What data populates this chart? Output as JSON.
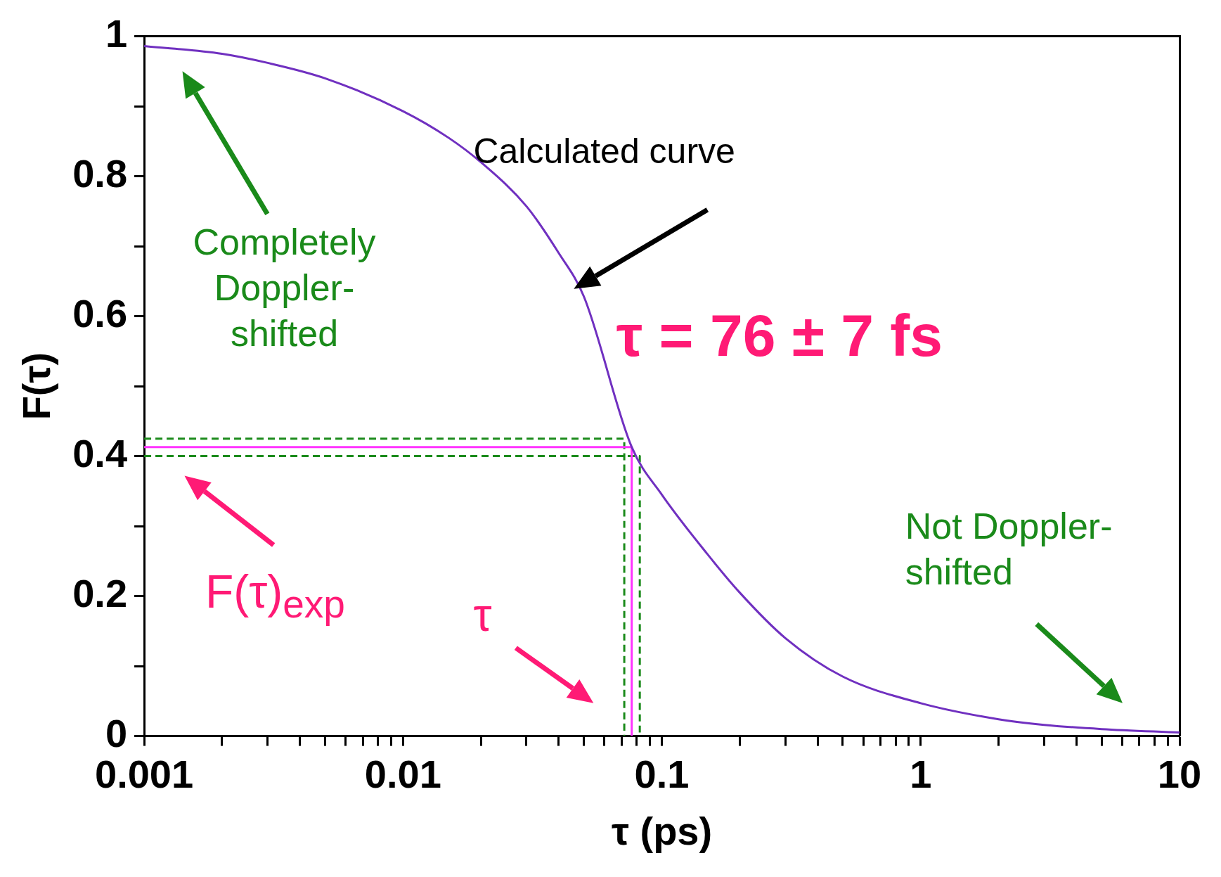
{
  "chart_data": {
    "type": "line",
    "xlabel": "τ (ps)",
    "ylabel": "F(τ)",
    "log": "x",
    "grid": false,
    "legend": false,
    "marker": "none",
    "xlim": [
      0.001,
      10
    ],
    "ylim": [
      0,
      1
    ],
    "xticks": [
      0.001,
      {
        "value": 0.002,
        "label": null
      },
      {
        "value": 0.003,
        "label": null
      },
      {
        "value": 0.004,
        "label": null
      },
      {
        "value": 0.005,
        "label": null
      },
      {
        "value": 0.006,
        "label": null
      },
      {
        "value": 0.007,
        "label": null
      },
      {
        "value": 0.008,
        "label": null
      },
      {
        "value": 0.009,
        "label": null
      },
      0.01,
      {
        "value": 0.02,
        "label": null
      },
      {
        "value": 0.03,
        "label": null
      },
      {
        "value": 0.04,
        "label": null
      },
      {
        "value": 0.05,
        "label": null
      },
      {
        "value": 0.06,
        "label": null
      },
      {
        "value": 0.07,
        "label": null
      },
      {
        "value": 0.08,
        "label": null
      },
      {
        "value": 0.09,
        "label": null
      },
      0.1,
      {
        "value": 0.2,
        "label": null
      },
      {
        "value": 0.3,
        "label": null
      },
      {
        "value": 0.4,
        "label": null
      },
      {
        "value": 0.5,
        "label": null
      },
      {
        "value": 0.6,
        "label": null
      },
      {
        "value": 0.7,
        "label": null
      },
      {
        "value": 0.8,
        "label": null
      },
      {
        "value": 0.9,
        "label": null
      },
      1,
      {
        "value": 2,
        "label": null
      },
      {
        "value": 3,
        "label": null
      },
      {
        "value": 4,
        "label": null
      },
      {
        "value": 5,
        "label": null
      },
      {
        "value": 6,
        "label": null
      },
      {
        "value": 7,
        "label": null
      },
      {
        "value": 8,
        "label": null
      },
      {
        "value": 9,
        "label": null
      },
      10
    ],
    "yticks": [
      0,
      {
        "value": 0.1,
        "label": null
      },
      0.2,
      {
        "value": 0.3,
        "label": null
      },
      0.4,
      {
        "value": 0.5,
        "label": null
      },
      0.6,
      {
        "value": 0.7,
        "label": null
      },
      0.8,
      {
        "value": 0.9,
        "label": null
      },
      1
    ],
    "series": [
      {
        "type": "line",
        "color": "#7030c0",
        "line_style": "solid",
        "x": [
          0.001,
          0.002,
          0.003,
          0.005,
          0.01,
          0.015,
          0.02,
          0.03,
          0.04,
          0.05,
          0.0765,
          0.1,
          0.15,
          0.2,
          0.3,
          0.5,
          1,
          2,
          3,
          5,
          10
        ],
        "values": [
          0.986,
          0.975,
          0.962,
          0.94,
          0.893,
          0.855,
          0.82,
          0.757,
          0.69,
          0.628,
          0.413,
          0.345,
          0.26,
          0.205,
          0.14,
          0.085,
          0.047,
          0.024,
          0.016,
          0.01,
          0.005
        ]
      },
      {
        "type": "line",
        "color": "#ff33ff",
        "line_style": "solid",
        "x": [
          0.001,
          0.0765,
          0.0765
        ],
        "values": [
          0.413,
          0.413,
          0
        ]
      },
      {
        "type": "line",
        "color": "#1a8a1a",
        "line_style": "dashed",
        "x": [
          0.001,
          0.0716,
          0.0716
        ],
        "values": [
          0.425,
          0.425,
          0
        ]
      },
      {
        "type": "line",
        "color": "#1a8a1a",
        "line_style": "dashed",
        "x": [
          0.001,
          0.0822,
          0.0822
        ],
        "values": [
          0.4,
          0.4,
          0
        ]
      }
    ],
    "annotations": [
      "Calculated curve",
      "Completely Doppler-shifted",
      "τ = 76 ± 7 fs",
      "Not Doppler-shifted",
      "F(τ)$_{exp}$",
      "τ"
    ]
  }
}
